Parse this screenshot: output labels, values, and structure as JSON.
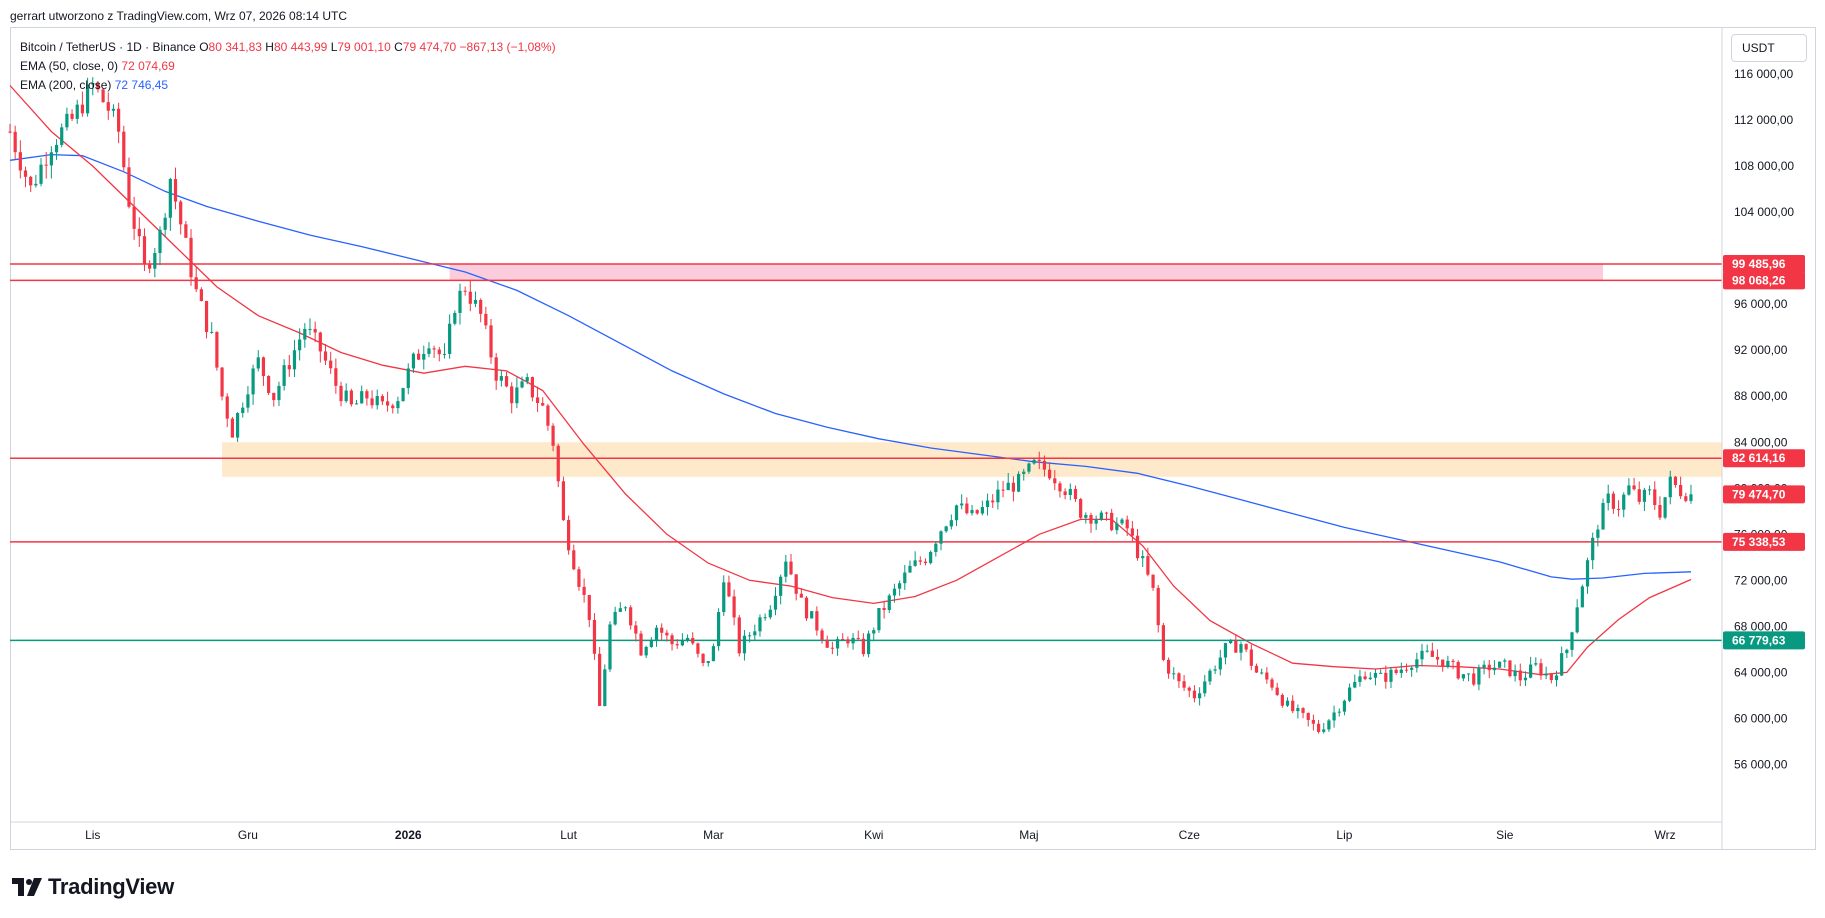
{
  "header": {
    "caption": "gerrart utworzono z TradingView.com, Wrz 07, 2026 08:14 UTC"
  },
  "legend": {
    "symbol": "Bitcoin / TetherUS · 1D · Binance",
    "o_label": "O",
    "o_value": "80 341,83",
    "h_label": "H",
    "h_value": "80 443,99",
    "l_label": "L",
    "l_value": "79 001,10",
    "c_label": "C",
    "c_value": "79 474,70",
    "change": "−867,13 (−1,08%)",
    "ema50_label": "EMA (50, close, 0)",
    "ema50_value": "72 074,69",
    "ema200_label": "EMA (200, close)",
    "ema200_value": "72 746,45"
  },
  "currency_button": "USDT",
  "logo_text": "TradingView",
  "colors": {
    "up": "#089981",
    "down": "#f23645",
    "ema50": "#f23645",
    "ema200": "#2962ff",
    "resistance": "#e5212e",
    "support": "#089981",
    "zone_pink": "#f8bbd0",
    "zone_orange": "#fde2b8",
    "grid_text": "#131722"
  },
  "chart_data": {
    "type": "candlestick",
    "symbol": "BTCUSDT",
    "interval": "1D",
    "ylim": [
      51000,
      120000
    ],
    "grid": false,
    "y_ticks": [
      "56 000,00",
      "60 000,00",
      "64 000,00",
      "68 000,00",
      "72 000,00",
      "76 000,00",
      "80 000,00",
      "84 000,00",
      "88 000,00",
      "92 000,00",
      "96 000,00",
      "104 000,00",
      "108 000,00",
      "112 000,00",
      "116 000,00"
    ],
    "y_tick_values": [
      56000,
      60000,
      64000,
      68000,
      72000,
      76000,
      80000,
      84000,
      88000,
      92000,
      96000,
      104000,
      108000,
      112000,
      116000
    ],
    "x_ticks": [
      {
        "label": "Lis",
        "day": 8,
        "bold": false
      },
      {
        "label": "Gru",
        "day": 38,
        "bold": false
      },
      {
        "label": "2026",
        "day": 69,
        "bold": true
      },
      {
        "label": "Lut",
        "day": 100,
        "bold": false
      },
      {
        "label": "Mar",
        "day": 128,
        "bold": false
      },
      {
        "label": "Kwi",
        "day": 159,
        "bold": false
      },
      {
        "label": "Maj",
        "day": 189,
        "bold": false
      },
      {
        "label": "Cze",
        "day": 220,
        "bold": false
      },
      {
        "label": "Lip",
        "day": 250,
        "bold": false
      },
      {
        "label": "Sie",
        "day": 281,
        "bold": false
      },
      {
        "label": "Wrz",
        "day": 312,
        "bold": false
      }
    ],
    "x_range_days": [
      -8,
      323
    ],
    "last_day": 317,
    "levels": [
      {
        "name": "resistance-99485",
        "value": 99485.96,
        "label": "99 485,96",
        "color": "#f23645"
      },
      {
        "name": "resistance-98068",
        "value": 98068.26,
        "label": "98 068,26",
        "color": "#f23645"
      },
      {
        "name": "resistance-82614",
        "value": 82614.16,
        "label": "82 614,16",
        "color": "#f23645"
      },
      {
        "name": "support-75338",
        "value": 75338.53,
        "label": "75 338,53",
        "color": "#f23645"
      },
      {
        "name": "support-66779",
        "value": 66779.63,
        "label": "66 779,63",
        "color": "#089981"
      }
    ],
    "last_price": {
      "value": 79474.7,
      "label": "79 474,70",
      "color": "#f23645"
    },
    "zones": [
      {
        "name": "pink-zone",
        "y0": 98068.26,
        "y1": 99485.96,
        "day0": 77,
        "day1": 300,
        "color": "#f8bbd0"
      },
      {
        "name": "orange-zone",
        "y0": 81000,
        "y1": 84000,
        "day0": 33,
        "day1": 323,
        "color": "#fde2b8"
      }
    ],
    "price_path": [
      [
        -8,
        111000
      ],
      [
        -4,
        106000
      ],
      [
        0,
        110000
      ],
      [
        4,
        112000
      ],
      [
        8,
        115000
      ],
      [
        11,
        113000
      ],
      [
        13,
        111000
      ],
      [
        15,
        105000
      ],
      [
        18,
        99000
      ],
      [
        21,
        102000
      ],
      [
        23,
        107000
      ],
      [
        26,
        101000
      ],
      [
        28,
        97000
      ],
      [
        31,
        93000
      ],
      [
        33,
        88000
      ],
      [
        35,
        85000
      ],
      [
        38,
        89000
      ],
      [
        40,
        91000
      ],
      [
        43,
        88000
      ],
      [
        46,
        91000
      ],
      [
        49,
        94000
      ],
      [
        52,
        92000
      ],
      [
        55,
        89000
      ],
      [
        58,
        87000
      ],
      [
        61,
        88000
      ],
      [
        64,
        87000
      ],
      [
        67,
        88000
      ],
      [
        70,
        91000
      ],
      [
        73,
        93000
      ],
      [
        76,
        91000
      ],
      [
        78,
        96000
      ],
      [
        80,
        97500
      ],
      [
        83,
        95000
      ],
      [
        86,
        90000
      ],
      [
        89,
        88000
      ],
      [
        92,
        89000
      ],
      [
        95,
        87000
      ],
      [
        97,
        84000
      ],
      [
        99,
        77000
      ],
      [
        102,
        72000
      ],
      [
        104,
        69000
      ],
      [
        106,
        61000
      ],
      [
        108,
        68000
      ],
      [
        111,
        70000
      ],
      [
        114,
        66000
      ],
      [
        117,
        68000
      ],
      [
        120,
        66500
      ],
      [
        123,
        67000
      ],
      [
        126,
        64500
      ],
      [
        128,
        66000
      ],
      [
        130,
        72500
      ],
      [
        133,
        66000
      ],
      [
        136,
        68000
      ],
      [
        139,
        70000
      ],
      [
        142,
        74000
      ],
      [
        145,
        70000
      ],
      [
        148,
        68000
      ],
      [
        151,
        66000
      ],
      [
        154,
        67000
      ],
      [
        157,
        66000
      ],
      [
        160,
        69000
      ],
      [
        163,
        71000
      ],
      [
        166,
        73000
      ],
      [
        169,
        74000
      ],
      [
        172,
        76500
      ],
      [
        175,
        78500
      ],
      [
        178,
        77500
      ],
      [
        181,
        78500
      ],
      [
        184,
        80000
      ],
      [
        187,
        80500
      ],
      [
        190,
        82000
      ],
      [
        193,
        81500
      ],
      [
        196,
        80000
      ],
      [
        199,
        78000
      ],
      [
        202,
        77500
      ],
      [
        205,
        77000
      ],
      [
        208,
        76500
      ],
      [
        211,
        73500
      ],
      [
        213,
        71000
      ],
      [
        215,
        65000
      ],
      [
        218,
        63000
      ],
      [
        221,
        62000
      ],
      [
        224,
        64000
      ],
      [
        227,
        66000
      ],
      [
        230,
        66500
      ],
      [
        233,
        64000
      ],
      [
        236,
        63000
      ],
      [
        239,
        61000
      ],
      [
        242,
        60000
      ],
      [
        245,
        59000
      ],
      [
        248,
        60500
      ],
      [
        251,
        62500
      ],
      [
        254,
        64000
      ],
      [
        257,
        63500
      ],
      [
        260,
        64000
      ],
      [
        263,
        65000
      ],
      [
        266,
        65500
      ],
      [
        269,
        65000
      ],
      [
        272,
        64000
      ],
      [
        275,
        63500
      ],
      [
        278,
        64500
      ],
      [
        281,
        64500
      ],
      [
        284,
        63500
      ],
      [
        287,
        64500
      ],
      [
        290,
        63500
      ],
      [
        293,
        66000
      ],
      [
        295,
        70000
      ],
      [
        297,
        73500
      ],
      [
        299,
        77000
      ],
      [
        301,
        79000
      ],
      [
        303,
        78500
      ],
      [
        305,
        80000
      ],
      [
        307,
        79000
      ],
      [
        309,
        79500
      ],
      [
        311,
        78000
      ],
      [
        313,
        80500
      ],
      [
        315,
        79800
      ],
      [
        317,
        79474.7
      ]
    ],
    "ema50_path": [
      [
        -8,
        115000
      ],
      [
        0,
        111000
      ],
      [
        8,
        108000
      ],
      [
        16,
        104500
      ],
      [
        24,
        101000
      ],
      [
        32,
        97500
      ],
      [
        40,
        95000
      ],
      [
        48,
        93500
      ],
      [
        56,
        91800
      ],
      [
        64,
        90700
      ],
      [
        72,
        90000
      ],
      [
        80,
        90600
      ],
      [
        88,
        90200
      ],
      [
        95,
        88500
      ],
      [
        103,
        83800
      ],
      [
        111,
        79500
      ],
      [
        119,
        76000
      ],
      [
        127,
        73500
      ],
      [
        135,
        72000
      ],
      [
        143,
        71500
      ],
      [
        151,
        70500
      ],
      [
        159,
        70000
      ],
      [
        167,
        70600
      ],
      [
        175,
        72000
      ],
      [
        183,
        74000
      ],
      [
        191,
        76000
      ],
      [
        199,
        77300
      ],
      [
        205,
        77300
      ],
      [
        211,
        75000
      ],
      [
        217,
        71500
      ],
      [
        224,
        68500
      ],
      [
        232,
        66500
      ],
      [
        240,
        64800
      ],
      [
        248,
        64500
      ],
      [
        256,
        64300
      ],
      [
        264,
        64600
      ],
      [
        272,
        64500
      ],
      [
        280,
        64300
      ],
      [
        288,
        63800
      ],
      [
        293,
        64000
      ],
      [
        297,
        66200
      ],
      [
        303,
        68600
      ],
      [
        309,
        70500
      ],
      [
        317,
        72074.69
      ]
    ],
    "ema200_path": [
      [
        -8,
        108500
      ],
      [
        0,
        109000
      ],
      [
        6,
        108900
      ],
      [
        14,
        107500
      ],
      [
        22,
        105800
      ],
      [
        30,
        104500
      ],
      [
        40,
        103200
      ],
      [
        50,
        102000
      ],
      [
        60,
        101000
      ],
      [
        70,
        99900
      ],
      [
        80,
        98800
      ],
      [
        90,
        97200
      ],
      [
        100,
        95000
      ],
      [
        110,
        92600
      ],
      [
        120,
        90200
      ],
      [
        130,
        88200
      ],
      [
        140,
        86500
      ],
      [
        150,
        85300
      ],
      [
        160,
        84300
      ],
      [
        170,
        83500
      ],
      [
        180,
        82900
      ],
      [
        190,
        82300
      ],
      [
        200,
        81900
      ],
      [
        210,
        81300
      ],
      [
        220,
        80200
      ],
      [
        230,
        79000
      ],
      [
        240,
        77800
      ],
      [
        250,
        76600
      ],
      [
        260,
        75600
      ],
      [
        270,
        74600
      ],
      [
        280,
        73600
      ],
      [
        290,
        72300
      ],
      [
        294,
        72100
      ],
      [
        300,
        72200
      ],
      [
        308,
        72600
      ],
      [
        317,
        72746.45
      ]
    ]
  }
}
